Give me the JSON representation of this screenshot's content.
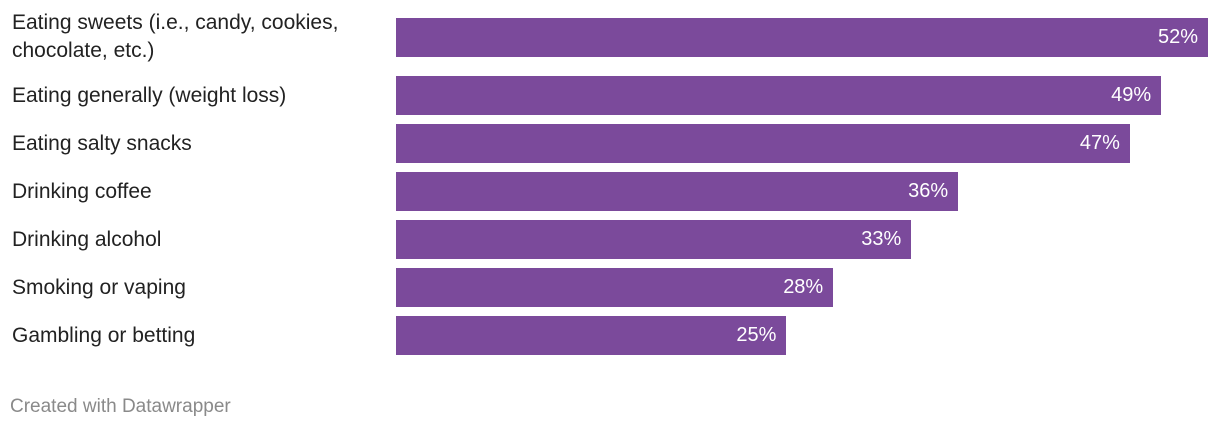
{
  "chart_data": {
    "type": "bar",
    "orientation": "horizontal",
    "categories": [
      "Eating sweets (i.e., candy, cookies, chocolate, etc.)",
      "Eating generally (weight loss)",
      "Eating salty snacks",
      "Drinking coffee",
      "Drinking alcohol",
      "Smoking or vaping",
      "Gambling or betting"
    ],
    "values": [
      52,
      49,
      47,
      36,
      33,
      28,
      25
    ],
    "value_labels": [
      "52%",
      "49%",
      "47%",
      "36%",
      "33%",
      "28%",
      "25%"
    ],
    "color": "#7b4a9b",
    "footer": "Created with Datawrapper"
  }
}
